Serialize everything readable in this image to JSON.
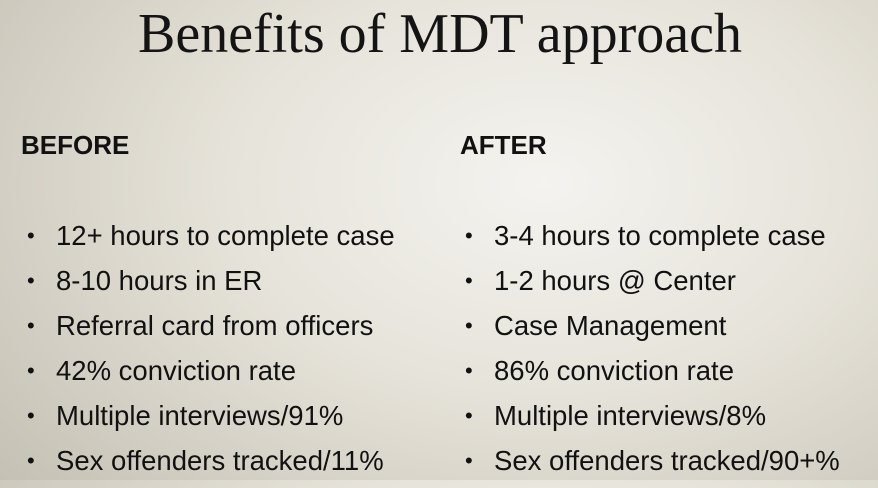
{
  "slide": {
    "title": "Benefits of MDT approach"
  },
  "before": {
    "heading": "BEFORE",
    "items": [
      "12+ hours to complete case",
      "8-10 hours in ER",
      "Referral card from officers",
      "42% conviction rate",
      "Multiple interviews/91%",
      "Sex offenders tracked/11%"
    ]
  },
  "after": {
    "heading": "AFTER",
    "items": [
      "3-4 hours to complete case",
      "1-2 hours @ Center",
      "Case Management",
      "86% conviction rate",
      "Multiple interviews/8%",
      "Sex offenders tracked/90+%"
    ]
  },
  "bullet_glyph": "•"
}
